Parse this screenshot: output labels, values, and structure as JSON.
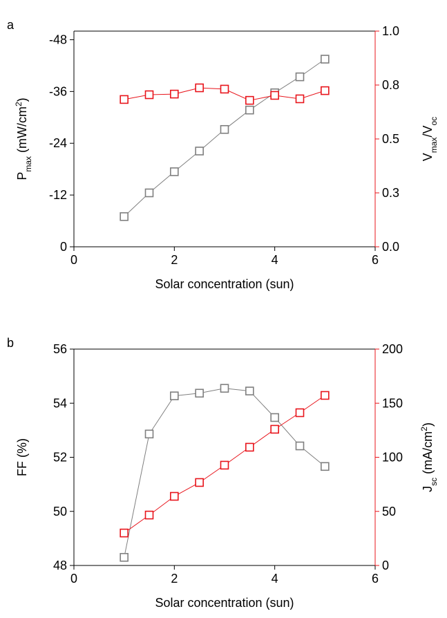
{
  "chart_data": [
    {
      "type": "line",
      "label": "a",
      "xlabel": "Solar concentration (sun)",
      "ylabel": [
        "P",
        "max",
        " (mW/cm",
        "2",
        ")"
      ],
      "y2label": [
        "V",
        "max",
        "/V",
        "oc"
      ],
      "x": [
        1,
        1.5,
        2,
        2.5,
        3,
        3.5,
        4,
        4.5,
        5
      ],
      "xlim": [
        0,
        6
      ],
      "xticks": [
        0,
        2,
        4,
        6
      ],
      "ylim": [
        0,
        -50
      ],
      "yticks": [
        0,
        -12,
        -24,
        -36,
        -48
      ],
      "y2lim": [
        0,
        1.0
      ],
      "y2ticks": [
        {
          "value": 0,
          "label": "0.0"
        },
        {
          "value": 0.25,
          "label": "0.3"
        },
        {
          "value": 0.5,
          "label": "0.5"
        },
        {
          "value": 0.75,
          "label": "0.8"
        },
        {
          "value": 1.0,
          "label": "1.0"
        }
      ],
      "y2color": "#e8141b",
      "series": [
        {
          "color": "#7f7f7f",
          "values": [
            -7.0,
            -12.5,
            -17.4,
            -22.2,
            -27.2,
            -31.7,
            -35.7,
            -39.4,
            -43.5
          ]
        },
        {
          "color": "#e8141b",
          "axis": "y2",
          "values": [
            0.683,
            0.705,
            0.708,
            0.737,
            0.731,
            0.679,
            0.702,
            0.686,
            0.724
          ]
        }
      ]
    },
    {
      "type": "line",
      "label": "b",
      "xlabel": "Solar concentration (sun)",
      "ylabel": [
        "FF (%)"
      ],
      "y2label": [
        "J",
        "sc",
        " (mA/cm",
        "2",
        ")"
      ],
      "x": [
        1,
        1.5,
        2,
        2.5,
        3,
        3.5,
        4,
        4.5,
        5
      ],
      "xlim": [
        0,
        6
      ],
      "xticks": [
        0,
        2,
        4,
        6
      ],
      "ylim": [
        48,
        56
      ],
      "yticks": [
        48,
        50,
        52,
        54,
        56
      ],
      "y2lim": [
        0,
        200
      ],
      "y2ticks": [
        0,
        50,
        100,
        150,
        200
      ],
      "y2color": "#e8141b",
      "series": [
        {
          "color": "#7f7f7f",
          "values": [
            48.3,
            52.86,
            54.27,
            54.37,
            54.55,
            54.45,
            53.47,
            52.42,
            51.66
          ]
        },
        {
          "color": "#e8141b",
          "axis": "y2",
          "values": [
            30,
            46.6,
            63.9,
            76.7,
            92.7,
            109.3,
            125.9,
            141.2,
            157.2
          ]
        }
      ]
    }
  ]
}
